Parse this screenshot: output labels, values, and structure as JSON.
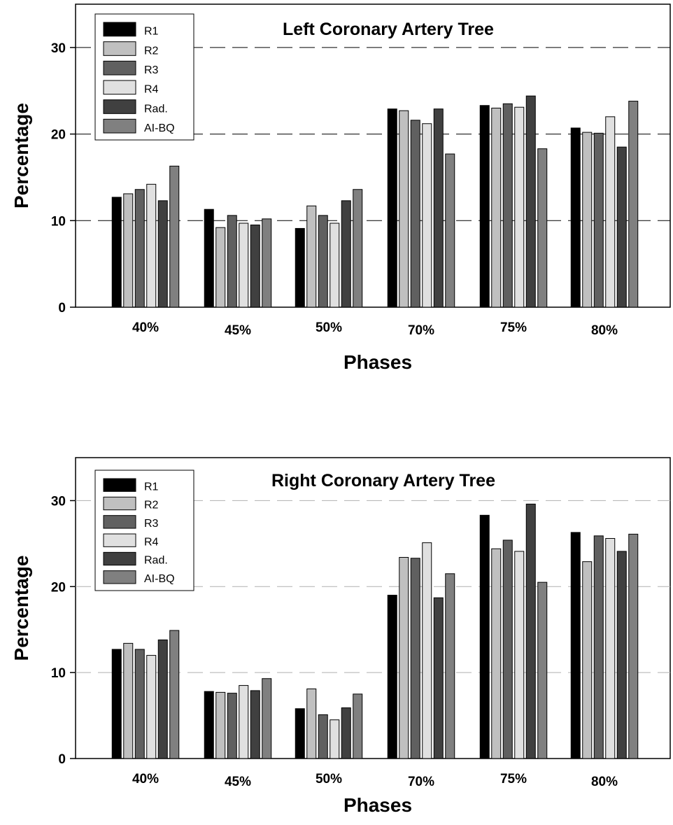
{
  "chart_data": [
    {
      "type": "bar",
      "title": "Left Coronary Artery Tree",
      "xlabel": "Phases",
      "ylabel": "Percentage",
      "ylim": [
        0,
        35
      ],
      "yticks": [
        0,
        10,
        20,
        30
      ],
      "grid": "dashed horizontal at 10, 20, 30",
      "legend_position": "top-left",
      "categories": [
        "40%",
        "45%",
        "50%",
        "70%",
        "75%",
        "80%"
      ],
      "series": [
        {
          "name": "R1",
          "color": "#000000",
          "values": [
            12.7,
            11.3,
            9.1,
            22.9,
            23.3,
            20.7
          ]
        },
        {
          "name": "R2",
          "color": "#c0c0c0",
          "values": [
            13.1,
            9.2,
            11.7,
            22.7,
            23.0,
            20.2
          ]
        },
        {
          "name": "R3",
          "color": "#606060",
          "values": [
            13.6,
            10.6,
            10.6,
            21.6,
            23.5,
            20.1
          ]
        },
        {
          "name": "R4",
          "color": "#e0e0e0",
          "values": [
            14.2,
            9.7,
            9.7,
            21.2,
            23.1,
            22.0
          ]
        },
        {
          "name": "Rad.",
          "color": "#404040",
          "values": [
            12.3,
            9.5,
            12.3,
            22.9,
            24.4,
            18.5
          ]
        },
        {
          "name": "AI-BQ",
          "color": "#808080",
          "values": [
            16.3,
            10.2,
            13.6,
            17.7,
            18.3,
            23.8
          ]
        }
      ]
    },
    {
      "type": "bar",
      "title": "Right Coronary Artery Tree",
      "xlabel": "Phases",
      "ylabel": "Percentage",
      "ylim": [
        0,
        35
      ],
      "yticks": [
        0,
        10,
        20,
        30
      ],
      "grid": "dashed horizontal at 10, 20, 30",
      "legend_position": "top-left",
      "categories": [
        "40%",
        "45%",
        "50%",
        "70%",
        "75%",
        "80%"
      ],
      "series": [
        {
          "name": "R1",
          "color": "#000000",
          "values": [
            12.7,
            7.8,
            5.8,
            19.0,
            28.3,
            26.3
          ]
        },
        {
          "name": "R2",
          "color": "#c0c0c0",
          "values": [
            13.4,
            7.7,
            8.1,
            23.4,
            24.4,
            22.9
          ]
        },
        {
          "name": "R3",
          "color": "#606060",
          "values": [
            12.7,
            7.6,
            5.1,
            23.3,
            25.4,
            25.9
          ]
        },
        {
          "name": "R4",
          "color": "#e0e0e0",
          "values": [
            12.0,
            8.5,
            4.5,
            25.1,
            24.1,
            25.6
          ]
        },
        {
          "name": "Rad.",
          "color": "#404040",
          "values": [
            13.8,
            7.9,
            5.9,
            18.7,
            29.6,
            24.1
          ]
        },
        {
          "name": "AI-BQ",
          "color": "#808080",
          "values": [
            14.9,
            9.3,
            7.5,
            21.5,
            20.5,
            26.1
          ]
        }
      ]
    }
  ]
}
